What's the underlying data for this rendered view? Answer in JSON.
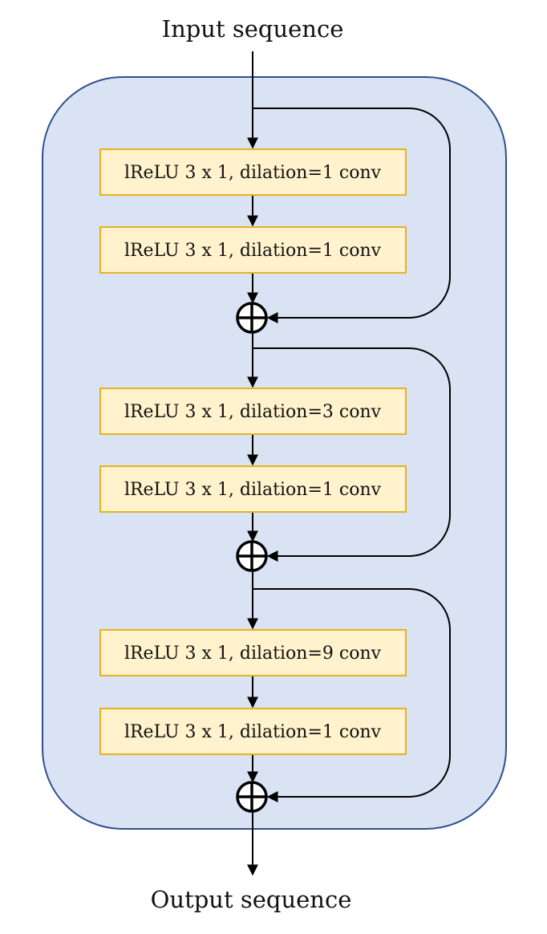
{
  "diagram": {
    "input_label": "Input sequence",
    "output_label": "Output sequence",
    "residual_stages": [
      {
        "layers": [
          {
            "label": "lReLU 3 x 1, dilation=1 conv"
          },
          {
            "label": "lReLU 3 x 1, dilation=1 conv"
          }
        ]
      },
      {
        "layers": [
          {
            "label": "lReLU 3 x 1, dilation=3 conv"
          },
          {
            "label": "lReLU 3 x 1, dilation=1 conv"
          }
        ]
      },
      {
        "layers": [
          {
            "label": "lReLU 3 x 1, dilation=9 conv"
          },
          {
            "label": "lReLU 3 x 1, dilation=1 conv"
          }
        ]
      }
    ],
    "colors": {
      "container_fill": "#dae3f3",
      "container_stroke": "#2f4f8f",
      "block_fill": "#fff2cc",
      "block_stroke": "#e6b221",
      "wire": "#000000"
    },
    "icons": {
      "sum": "circled-plus-icon",
      "arrow": "arrowhead-icon"
    }
  }
}
